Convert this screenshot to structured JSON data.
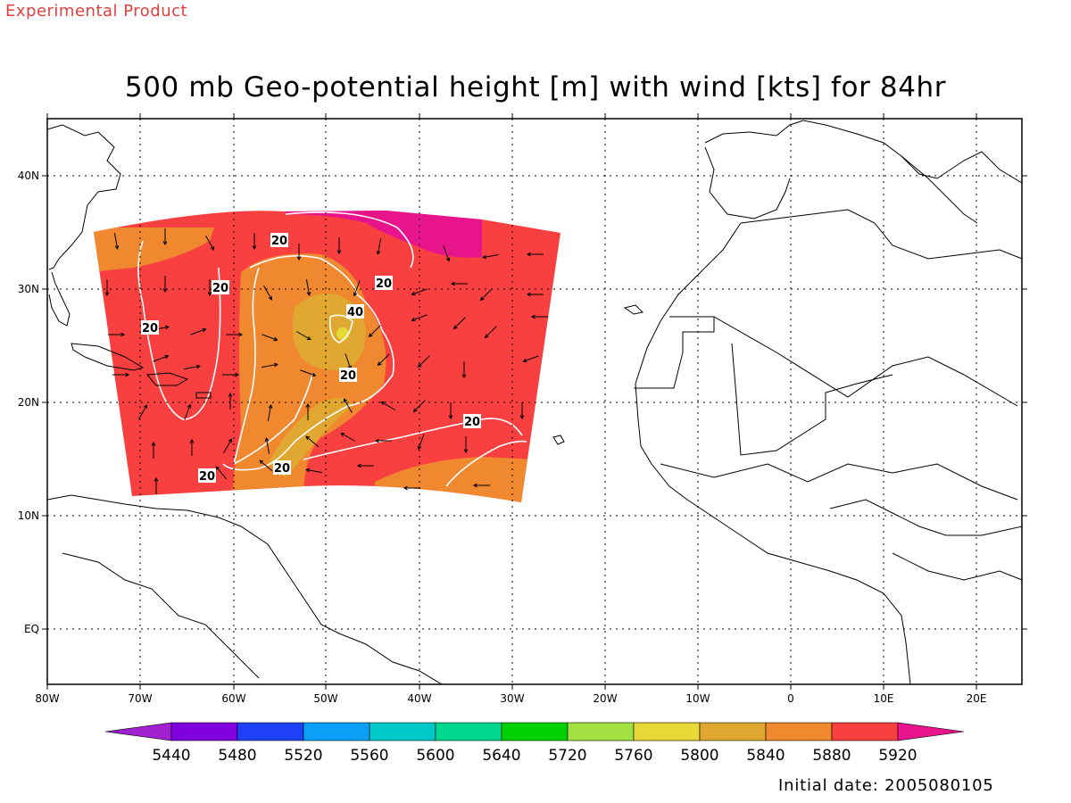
{
  "header": {
    "experimental_label": "Experimental Product",
    "title": "500 mb Geo-potential height [m] with wind [kts] for 84hr"
  },
  "footer": {
    "initial_date": "Initial date: 2005080105"
  },
  "map": {
    "lon_ticks": [
      "80W",
      "70W",
      "60W",
      "50W",
      "40W",
      "30W",
      "20W",
      "10W",
      "0",
      "10E",
      "20E"
    ],
    "lat_ticks": [
      "40N",
      "30N",
      "20N",
      "10N",
      "EQ"
    ],
    "contour_labels": [
      "20",
      "20",
      "20",
      "20",
      "40",
      "20",
      "20",
      "20",
      "20"
    ],
    "colors": {
      "h5840": "#e0a830",
      "h5880": "#f08830",
      "h5920": "#f84040",
      "h_above": "#e8148c",
      "h5800": "#e8d838",
      "contour": "#ffffff",
      "coast": "#000000"
    }
  },
  "colorbar": {
    "labels": [
      "5440",
      "5480",
      "5520",
      "5560",
      "5600",
      "5640",
      "5720",
      "5760",
      "5800",
      "5840",
      "5880",
      "5920"
    ],
    "colors": [
      "#a020d0",
      "#8000e0",
      "#2040f8",
      "#0aa0f8",
      "#00c8c8",
      "#00d890",
      "#00d000",
      "#a0e040",
      "#e8d838",
      "#e0a830",
      "#f08830",
      "#f84040",
      "#e8148c"
    ]
  }
}
